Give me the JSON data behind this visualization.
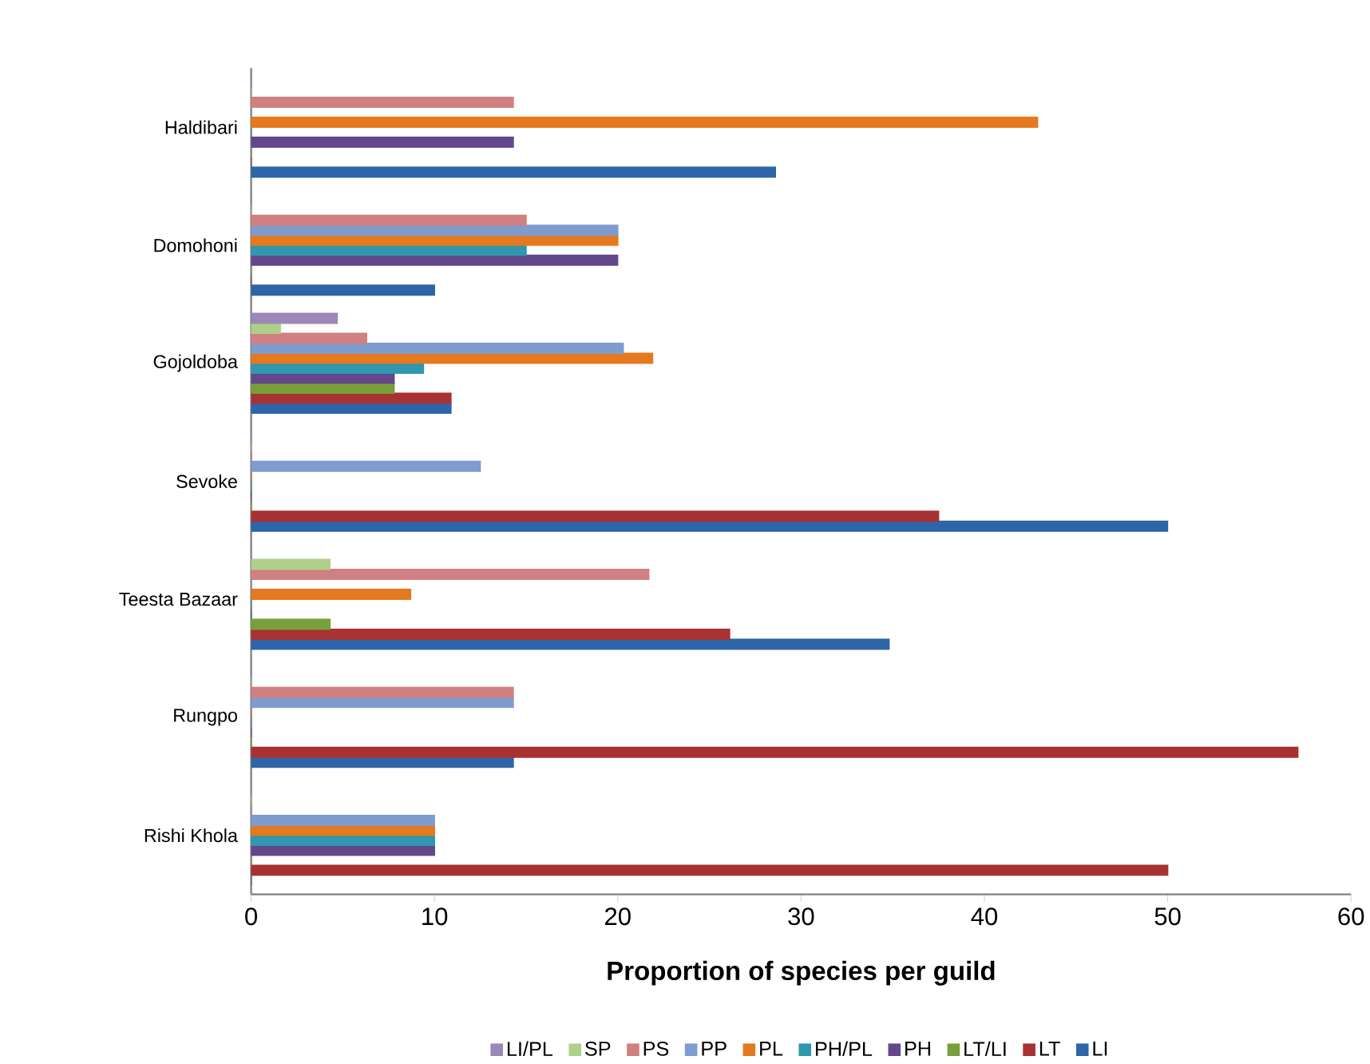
{
  "chart_data": {
    "type": "bar",
    "orientation": "horizontal",
    "xlabel": "Proportion of species per guild",
    "categories": [
      "Haldibari",
      "Domohoni",
      "Gojoldoba",
      "Sevoke",
      "Teesta Bazaar",
      "Rungpo",
      "Rishi Khola"
    ],
    "xlim": [
      0,
      60
    ],
    "xticks": [
      0,
      10,
      20,
      30,
      40,
      50,
      60
    ],
    "grid": false,
    "legend": "bottom",
    "series": [
      {
        "name": "LI",
        "color": "#2e64a8",
        "values": [
          28.6,
          10,
          10.9,
          50,
          34.8,
          14.3,
          0
        ]
      },
      {
        "name": "LT",
        "color": "#a83232",
        "values": [
          0,
          0,
          10.9,
          37.5,
          26.1,
          57.1,
          50
        ]
      },
      {
        "name": "LT/LI",
        "color": "#77a03a",
        "values": [
          0,
          0,
          7.8,
          0,
          4.3,
          0,
          0
        ]
      },
      {
        "name": "PH",
        "color": "#64478a",
        "values": [
          14.3,
          20,
          7.8,
          0,
          0,
          0,
          10
        ]
      },
      {
        "name": "PH/PL",
        "color": "#2f97ae",
        "values": [
          0,
          15,
          9.4,
          0,
          0,
          0,
          10
        ]
      },
      {
        "name": "PL",
        "color": "#e5791f",
        "values": [
          42.9,
          20,
          21.9,
          0,
          8.7,
          0,
          10
        ]
      },
      {
        "name": "PP",
        "color": "#7e9ccd",
        "values": [
          0,
          20,
          20.3,
          12.5,
          0,
          14.3,
          10
        ]
      },
      {
        "name": "PS",
        "color": "#d08080",
        "values": [
          14.3,
          15,
          6.3,
          0,
          21.7,
          14.3,
          0
        ]
      },
      {
        "name": "SP",
        "color": "#b0d08a",
        "values": [
          0,
          0,
          1.6,
          0,
          4.3,
          0,
          0
        ]
      },
      {
        "name": "LI/PL",
        "color": "#9b88b8",
        "values": [
          0,
          0,
          4.7,
          0,
          0,
          0,
          0
        ]
      }
    ]
  }
}
